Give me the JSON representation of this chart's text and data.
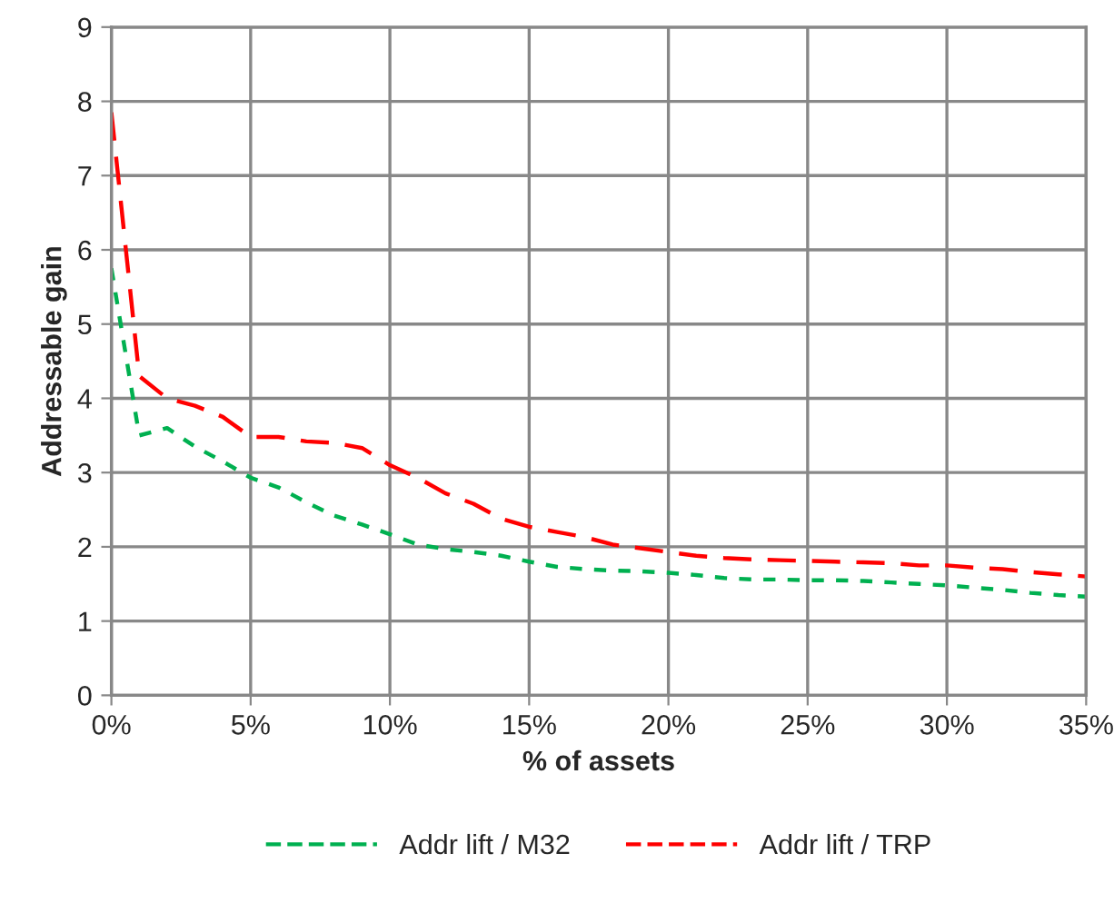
{
  "chart_data": {
    "type": "line",
    "xlabel": "% of assets",
    "ylabel": "Addressable gain",
    "x": [
      0,
      1,
      2,
      3,
      4,
      5,
      6,
      7,
      8,
      9,
      10,
      11,
      12,
      13,
      14,
      15,
      16,
      17,
      18,
      19,
      20,
      21,
      22,
      23,
      24,
      25,
      26,
      27,
      28,
      29,
      30,
      31,
      32,
      33,
      34,
      35
    ],
    "series": [
      {
        "name": "Addr lift / M32",
        "color": "#00b050",
        "line_style": "dotted",
        "values": [
          5.75,
          3.5,
          3.6,
          3.35,
          3.15,
          2.93,
          2.8,
          2.6,
          2.42,
          2.3,
          2.17,
          2.03,
          1.97,
          1.93,
          1.88,
          1.8,
          1.73,
          1.7,
          1.68,
          1.67,
          1.65,
          1.62,
          1.58,
          1.56,
          1.56,
          1.55,
          1.55,
          1.54,
          1.52,
          1.5,
          1.48,
          1.45,
          1.42,
          1.38,
          1.35,
          1.33
        ]
      },
      {
        "name": "Addr lift / TRP",
        "color": "#ff0000",
        "line_style": "dashed",
        "values": [
          7.85,
          4.3,
          4.0,
          3.9,
          3.75,
          3.48,
          3.48,
          3.42,
          3.4,
          3.33,
          3.1,
          2.93,
          2.72,
          2.58,
          2.38,
          2.27,
          2.2,
          2.13,
          2.03,
          1.98,
          1.93,
          1.88,
          1.85,
          1.83,
          1.82,
          1.81,
          1.8,
          1.79,
          1.78,
          1.75,
          1.75,
          1.72,
          1.7,
          1.66,
          1.63,
          1.6
        ]
      }
    ],
    "xlim": [
      0,
      35
    ],
    "ylim": [
      0,
      9
    ],
    "xticks": [
      {
        "value": 0,
        "label": "0%"
      },
      {
        "value": 5,
        "label": "5%"
      },
      {
        "value": 10,
        "label": "10%"
      },
      {
        "value": 15,
        "label": "15%"
      },
      {
        "value": 20,
        "label": "20%"
      },
      {
        "value": 25,
        "label": "25%"
      },
      {
        "value": 30,
        "label": "30%"
      },
      {
        "value": 35,
        "label": "35%"
      }
    ],
    "yticks": [
      0,
      1,
      2,
      3,
      4,
      5,
      6,
      7,
      8,
      9
    ],
    "grid": true,
    "legend": "bottom",
    "marker": "none"
  }
}
